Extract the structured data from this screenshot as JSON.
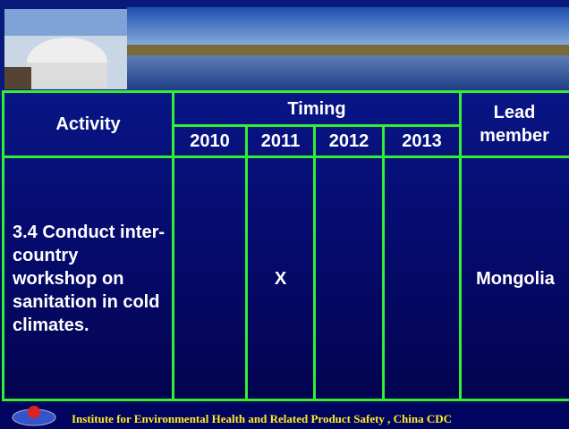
{
  "table": {
    "header": {
      "activity": "Activity",
      "timing": "Timing",
      "years": [
        "2010",
        "2011",
        "2012",
        "2013"
      ],
      "lead": "Lead member"
    },
    "rows": [
      {
        "activity": "3.4 Conduct inter-country workshop on sanitation in cold climates.",
        "cells": [
          null,
          "X",
          null,
          null
        ],
        "lead": "Mongolia"
      }
    ]
  },
  "footer": "Institute for Environmental Health and Related Product Safety , China CDC"
}
